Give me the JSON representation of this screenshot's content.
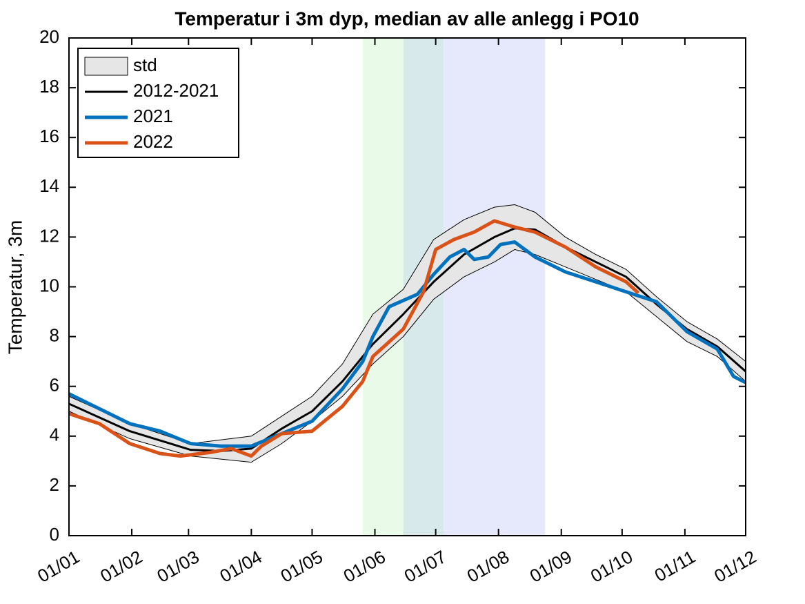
{
  "chart_data": {
    "type": "line",
    "title": "Temperatur i 3m dyp, median av alle anlegg i PO10",
    "y_label": "Temperatur, 3m",
    "xlim": [
      0,
      334
    ],
    "xticks": [
      {
        "value": 0,
        "label": "01/01"
      },
      {
        "value": 31,
        "label": "01/02"
      },
      {
        "value": 59,
        "label": "01/03"
      },
      {
        "value": 90,
        "label": "01/04"
      },
      {
        "value": 120,
        "label": "01/05"
      },
      {
        "value": 151,
        "label": "01/06"
      },
      {
        "value": 181,
        "label": "01/07"
      },
      {
        "value": 212,
        "label": "01/08"
      },
      {
        "value": 243,
        "label": "01/09"
      },
      {
        "value": 273,
        "label": "01/10"
      },
      {
        "value": 304,
        "label": "01/11"
      },
      {
        "value": 334,
        "label": "01/12"
      }
    ],
    "ylim": [
      0,
      20
    ],
    "yticks": [
      0,
      2,
      4,
      6,
      8,
      10,
      12,
      14,
      16,
      18,
      20
    ],
    "legend": "upper left",
    "spans": [
      {
        "start": 145,
        "end": 165,
        "color": "#e9fbe8"
      },
      {
        "start": 165,
        "end": 185,
        "color": "#d7e9ea"
      },
      {
        "start": 185,
        "end": 235,
        "color": "#e6e8fb"
      }
    ],
    "band": {
      "name": "std",
      "color": "#e6e6e6",
      "x": [
        0,
        30,
        60,
        90,
        105,
        120,
        135,
        150,
        165,
        180,
        195,
        210,
        220,
        230,
        245,
        260,
        275,
        290,
        305,
        320,
        334
      ],
      "upper": [
        5.6,
        4.5,
        3.7,
        4.0,
        4.8,
        5.6,
        6.9,
        8.9,
        9.9,
        11.9,
        12.7,
        13.2,
        13.3,
        13.0,
        12.0,
        11.3,
        10.7,
        9.6,
        8.6,
        7.9,
        7.0
      ],
      "lower": [
        5.0,
        3.9,
        3.2,
        2.95,
        3.7,
        4.6,
        5.6,
        6.9,
        8.0,
        9.5,
        10.4,
        11.0,
        11.5,
        11.3,
        10.8,
        10.3,
        9.8,
        8.8,
        7.8,
        7.2,
        6.2
      ]
    },
    "series": [
      {
        "name": "2012-2021",
        "color": "#000000",
        "x": [
          0,
          30,
          60,
          75,
          90,
          105,
          120,
          135,
          150,
          165,
          180,
          195,
          210,
          220,
          230,
          245,
          260,
          275,
          290,
          305,
          320,
          334
        ],
        "values": [
          5.3,
          4.2,
          3.45,
          3.4,
          3.5,
          4.3,
          5.0,
          6.2,
          7.7,
          8.9,
          10.2,
          11.3,
          12.0,
          12.35,
          12.3,
          11.6,
          11.0,
          10.4,
          9.3,
          8.3,
          7.6,
          6.6
        ]
      },
      {
        "name": "2021",
        "color": "#0072bd",
        "x": [
          0,
          15,
          30,
          45,
          60,
          75,
          90,
          105,
          120,
          135,
          145,
          150,
          158,
          172,
          180,
          188,
          195,
          200,
          207,
          213,
          220,
          230,
          245,
          260,
          275,
          290,
          305,
          320,
          328,
          334
        ],
        "values": [
          5.7,
          5.1,
          4.5,
          4.2,
          3.7,
          3.6,
          3.6,
          4.1,
          4.6,
          5.9,
          7.0,
          8.0,
          9.2,
          9.7,
          10.5,
          11.2,
          11.5,
          11.1,
          11.2,
          11.7,
          11.8,
          11.2,
          10.6,
          10.2,
          9.8,
          9.4,
          8.2,
          7.5,
          6.4,
          6.15
        ]
      },
      {
        "name": "2022",
        "color": "#d95319",
        "x": [
          0,
          15,
          30,
          45,
          55,
          70,
          80,
          90,
          95,
          105,
          120,
          135,
          145,
          150,
          165,
          175,
          181,
          190,
          200,
          210,
          220,
          230,
          245,
          260,
          275,
          281
        ],
        "values": [
          4.9,
          4.5,
          3.7,
          3.3,
          3.2,
          3.35,
          3.5,
          3.2,
          3.6,
          4.1,
          4.2,
          5.2,
          6.2,
          7.2,
          8.3,
          9.8,
          11.5,
          11.9,
          12.2,
          12.65,
          12.4,
          12.2,
          11.6,
          10.8,
          10.2,
          9.75
        ]
      }
    ]
  }
}
